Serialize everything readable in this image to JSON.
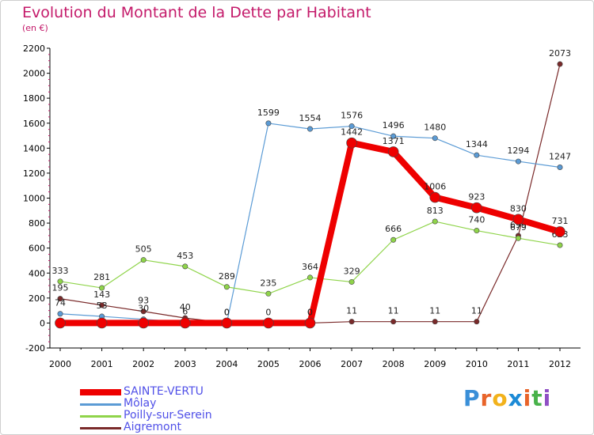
{
  "header": {
    "title": "Evolution du Montant de la Dette par Habitant",
    "subtitle": "(en €)"
  },
  "chart_data": {
    "type": "line",
    "title": "Evolution du Montant de la Dette par Habitant",
    "subtitle": "(en €)",
    "xlabel": "",
    "ylabel": "",
    "x": [
      "2000",
      "2001",
      "2002",
      "2003",
      "2004",
      "2005",
      "2006",
      "2007",
      "2008",
      "2009",
      "2010",
      "2011",
      "2012"
    ],
    "ylim": [
      -200,
      2200
    ],
    "yticks": [
      -200,
      0,
      200,
      400,
      600,
      800,
      1000,
      1200,
      1400,
      1600,
      1800,
      2000,
      2200
    ],
    "grid": false,
    "legend_position": "bottom-left",
    "series": [
      {
        "name": "Aigremont",
        "color": "#7a2a2a",
        "values": [
          195,
          143,
          93,
          40,
          0,
          0,
          0,
          11,
          11,
          11,
          11,
          699,
          2073
        ],
        "labels": [
          "195",
          "143",
          "93",
          "40",
          "0",
          "0",
          "0",
          "11",
          "11",
          "11",
          "11",
          "699",
          "2073"
        ]
      },
      {
        "name": "Môlay",
        "color": "#5b9bd5",
        "values": [
          74,
          53,
          30,
          6,
          0,
          1599,
          1554,
          1576,
          1496,
          1480,
          1344,
          1294,
          1247
        ],
        "labels": [
          "74",
          "53",
          "30",
          "6",
          "0",
          "1599",
          "1554",
          "1576",
          "1496",
          "1480",
          "1344",
          "1294",
          "1247"
        ]
      },
      {
        "name": "Poilly-sur-Serein",
        "color": "#8fd44a",
        "values": [
          333,
          281,
          505,
          453,
          289,
          235,
          364,
          329,
          666,
          813,
          740,
          679,
          623
        ],
        "labels": [
          "333",
          "281",
          "505",
          "453",
          "289",
          "235",
          "364",
          "329",
          "666",
          "813",
          "740",
          "679",
          "623"
        ]
      },
      {
        "name": "SAINTE-VERTU",
        "color": "#ee0000",
        "values": [
          0,
          0,
          0,
          0,
          0,
          0,
          0,
          1442,
          1371,
          1006,
          923,
          830,
          731
        ],
        "labels": [
          "",
          "",
          "",
          "",
          "",
          "",
          "0",
          "1442",
          "1371",
          "1006",
          "923",
          "830",
          "731"
        ]
      }
    ]
  },
  "legend": {
    "items": [
      {
        "name": "SAINTE-VERTU",
        "color": "#ee0000",
        "text_color": "#5050e8"
      },
      {
        "name": "Môlay",
        "color": "#5b9bd5",
        "text_color": "#5050e8"
      },
      {
        "name": "Poilly-sur-Serein",
        "color": "#8fd44a",
        "text_color": "#5050e8"
      },
      {
        "name": "Aigremont",
        "color": "#7a2a2a",
        "text_color": "#5050e8"
      }
    ]
  },
  "logo": {
    "letters": [
      "P",
      "r",
      "o",
      "x",
      "i",
      "t",
      "i"
    ],
    "colors": [
      "#3a8fd8",
      "#e8642a",
      "#f2b21c",
      "#1c8ad6",
      "#e8642a",
      "#48b24a",
      "#8f4fc4"
    ]
  }
}
